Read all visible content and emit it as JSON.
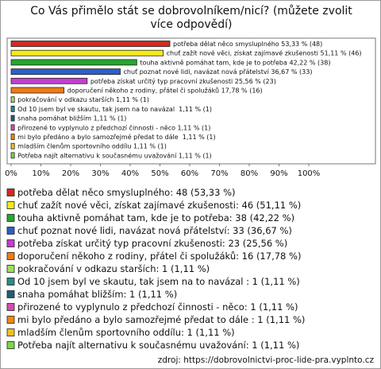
{
  "chart_data": {
    "type": "bar",
    "orientation": "horizontal",
    "title": "Co Vás přimělo stát se dobrovolníkem/nicí? (můžete zvolit více odpovědí)",
    "values": [
      53.33,
      51.11,
      42.22,
      36.67,
      25.56,
      17.78,
      1.11,
      1.11,
      1.11,
      1.11,
      1.11,
      1.11,
      1.11
    ],
    "value_labels": [
      "potřeba dělat něco smysluplného 53,33 % (48)",
      "chuť zažít nové věci, získat zajímavé zkušenosti 51,11 % (46)",
      "touha aktivně pomáhat tam, kde je to potřeba 42,22 % (38)",
      "chuť poznat nové lidi, navázat nová přátelství 36,67 % (33)",
      "potřeba získat určitý typ pracovní zkušenosti 25,56 % (23)",
      "doporučení někoho z rodiny, přátel či spolužáků 17,78 % (16)",
      "pokračování v odkazu starších 1,11 % (1)",
      "Od 10 jsem byl ve skautu, tak jsem na to navázal  1,11 % (1)",
      "snaha pomáhat bližším 1,11 % (1)",
      "přirozené to vyplynulo z předchozí činnosti - něco 1,11 % (1)",
      "mi bylo předáno a bylo samozřejmé předat to dále  1,11 % (1)",
      "mladším členům sportovního oddílu 1,11 % (1)",
      "Potřeba najít alternativu k současnému uvažování 1,11 % (1)"
    ],
    "legend_labels": [
      "potřeba dělat něco smysluplného: 48 (53,33 %)",
      "chuť zažít nové věci, získat zajímavé zkušenosti: 46 (51,11 %)",
      "touha aktivně pomáhat tam, kde je to potřeba: 38 (42,22 %)",
      "chuť poznat nové lidi, navázat nová přátelství: 33 (36,67 %)",
      "potřeba získat určitý typ pracovní zkušenosti: 23 (25,56 %)",
      "doporučení někoho z rodiny, přátel či spolužáků: 16 (17,78 %)",
      "pokračování v odkazu starších: 1 (1,11 %)",
      "Od 10 jsem byl ve skautu, tak jsem na to navázal : 1 (1,11 %)",
      "snaha pomáhat bližším: 1 (1,11 %)",
      "přirozené to vyplynulo z předchozí činnosti - něco: 1 (1,11 %)",
      "mi bylo předáno a bylo samozřejmé předat to dále : 1 (1,11 %)",
      "mladším členům sportovního oddílu: 1 (1,11 %)",
      "Potřeba najít alternativu k současnému uvažování: 1 (1,11 %)"
    ],
    "colors": [
      "#d42a1e",
      "#f5ea1c",
      "#24a82c",
      "#2b5fc9",
      "#c23fd0",
      "#f07a18",
      "#9ee05a",
      "#2a8c8a",
      "#1f5f7a",
      "#d04fb0",
      "#f08a10",
      "#f5c020",
      "#7ad84a"
    ],
    "xlim": [
      0,
      100
    ],
    "xticks": [
      {
        "value": 0,
        "label": "0%"
      },
      {
        "value": 10,
        "label": "10%"
      },
      {
        "value": 20,
        "label": "20%"
      },
      {
        "value": 30,
        "label": "30%"
      },
      {
        "value": 40,
        "label": "40%"
      },
      {
        "value": 50,
        "label": "50%"
      },
      {
        "value": 60,
        "label": "60%"
      },
      {
        "value": 70,
        "label": "70%"
      },
      {
        "value": 80,
        "label": "80%"
      },
      {
        "value": 90,
        "label": "90%"
      },
      {
        "value": 100,
        "label": "100%"
      }
    ],
    "grid": false,
    "source": "zdroj: https://dobrovolnictvi-proc-lide-pra.vyplnto.cz"
  }
}
